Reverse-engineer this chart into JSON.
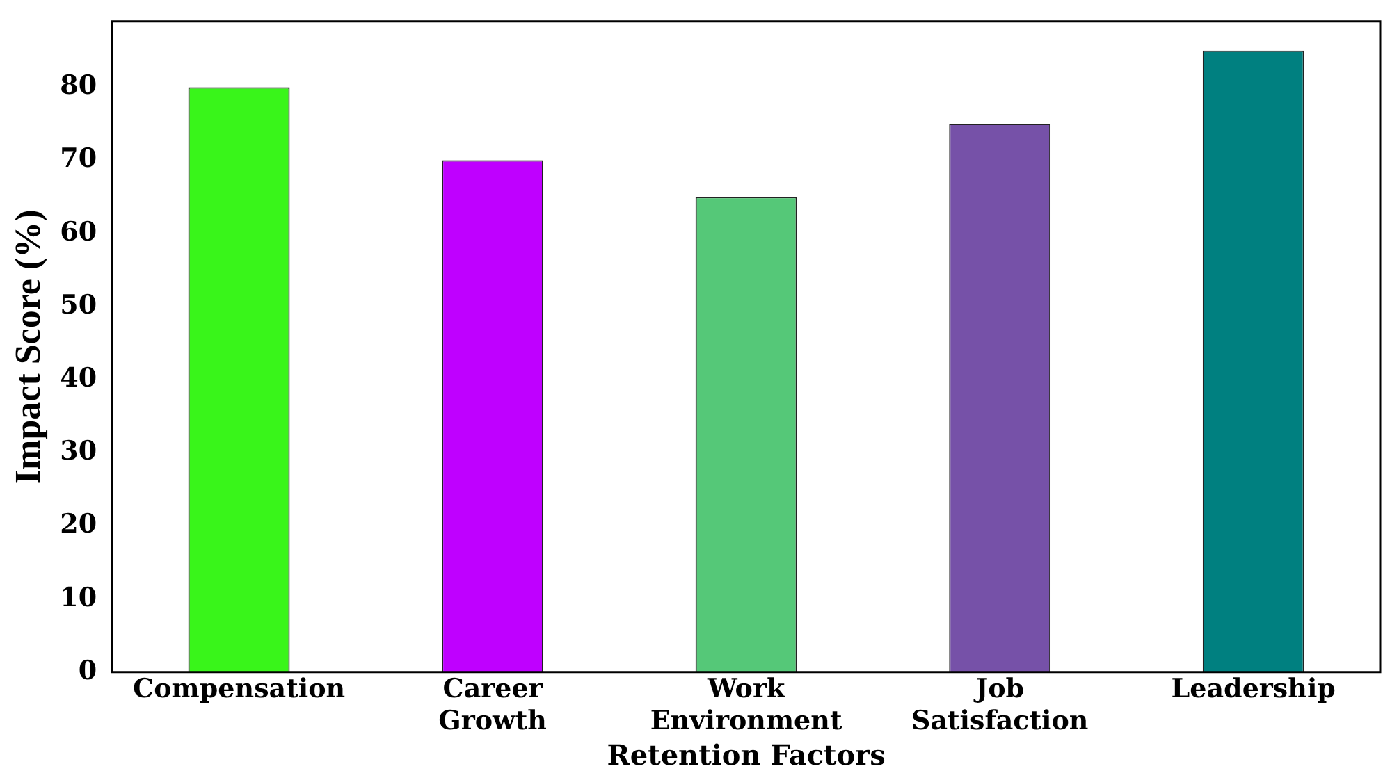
{
  "chart_data": {
    "type": "bar",
    "xlabel": "Retention Factors",
    "ylabel": "Impact Score (%)",
    "categories": [
      "Compensation",
      "Career Growth",
      "Work Environment",
      "Job Satisfaction",
      "Leadership"
    ],
    "values": [
      80,
      70,
      65,
      75,
      85
    ],
    "colors": [
      "#39f51a",
      "#bf00ff",
      "#55c878",
      "#7651a8",
      "#008080"
    ],
    "ylim": [
      0,
      89
    ],
    "yticks": [
      0,
      10,
      20,
      30,
      40,
      50,
      60,
      70,
      80
    ],
    "grid": false,
    "legend": false
  }
}
